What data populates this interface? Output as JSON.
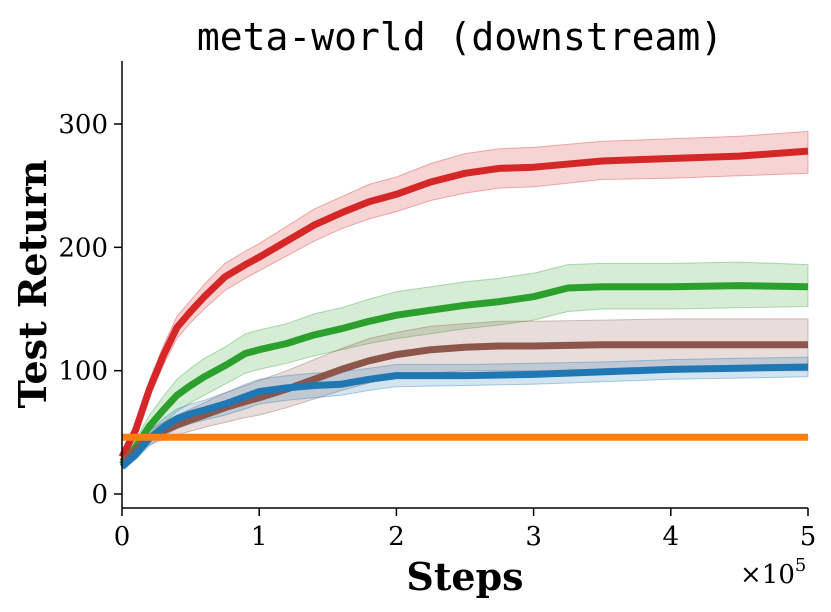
{
  "chart_data": {
    "type": "line",
    "title": "meta-world (downstream)",
    "xlabel": "Steps",
    "ylabel": "Test Return",
    "x_multiplier_label": "×10",
    "x_multiplier_exponent": "5",
    "xlim": [
      0,
      5
    ],
    "ylim": [
      -10,
      350
    ],
    "xticks": [
      0,
      1,
      2,
      3,
      4,
      5
    ],
    "xtick_labels": [
      "0",
      "1",
      "2",
      "3",
      "4",
      "5"
    ],
    "yticks": [
      0,
      100,
      200,
      300
    ],
    "ytick_labels": [
      "0",
      "100",
      "200",
      "300"
    ],
    "grid": false,
    "legend": "none",
    "series": [
      {
        "color": "#d62728",
        "x": [
          0,
          0.1,
          0.2,
          0.3,
          0.4,
          0.5,
          0.6,
          0.75,
          0.9,
          1.0,
          1.2,
          1.4,
          1.6,
          1.8,
          2.0,
          2.25,
          2.5,
          2.75,
          3.0,
          3.5,
          4.0,
          4.5,
          5.0
        ],
        "y": [
          30,
          52,
          85,
          112,
          135,
          148,
          160,
          176,
          186,
          192,
          205,
          218,
          228,
          237,
          243,
          253,
          260,
          264,
          265,
          270,
          272,
          274,
          278
        ],
        "lower": [
          28,
          48,
          78,
          104,
          126,
          139,
          150,
          165,
          175,
          181,
          193,
          205,
          215,
          223,
          229,
          238,
          244,
          248,
          249,
          255,
          256,
          258,
          260
        ],
        "upper": [
          33,
          56,
          92,
          120,
          144,
          157,
          170,
          187,
          197,
          203,
          217,
          231,
          241,
          251,
          257,
          268,
          276,
          280,
          281,
          286,
          288,
          290,
          294
        ]
      },
      {
        "color": "#2ca02c",
        "x": [
          0,
          0.1,
          0.2,
          0.3,
          0.4,
          0.5,
          0.6,
          0.75,
          0.9,
          1.0,
          1.2,
          1.4,
          1.6,
          1.8,
          2.0,
          2.25,
          2.5,
          2.75,
          3.0,
          3.25,
          3.5,
          4.0,
          4.5,
          5.0
        ],
        "y": [
          24,
          38,
          55,
          68,
          80,
          88,
          95,
          104,
          114,
          117,
          122,
          129,
          134,
          140,
          145,
          149,
          153,
          156,
          160,
          167,
          168,
          168,
          169,
          168
        ],
        "lower": [
          22,
          32,
          46,
          57,
          67,
          74,
          80,
          89,
          98,
          101,
          106,
          112,
          117,
          122,
          126,
          130,
          134,
          137,
          141,
          148,
          150,
          150,
          151,
          152
        ],
        "upper": [
          26,
          44,
          64,
          79,
          93,
          102,
          110,
          119,
          130,
          133,
          138,
          146,
          151,
          158,
          164,
          168,
          172,
          175,
          179,
          186,
          187,
          187,
          188,
          186
        ]
      },
      {
        "color": "#8c564b",
        "x": [
          0,
          0.1,
          0.2,
          0.3,
          0.4,
          0.5,
          0.6,
          0.75,
          0.9,
          1.0,
          1.2,
          1.4,
          1.6,
          1.8,
          2.0,
          2.25,
          2.5,
          2.75,
          3.0,
          3.5,
          4.0,
          4.5,
          5.0
        ],
        "y": [
          26,
          36,
          46,
          51,
          56,
          60,
          64,
          70,
          75,
          78,
          85,
          93,
          101,
          108,
          113,
          117,
          119,
          120,
          120,
          121,
          121,
          121,
          121
        ],
        "lower": [
          24,
          32,
          40,
          44,
          48,
          51,
          54,
          58,
          62,
          64,
          70,
          77,
          84,
          90,
          95,
          98,
          100,
          100,
          100,
          100,
          100,
          100,
          100
        ],
        "upper": [
          28,
          40,
          52,
          58,
          64,
          69,
          74,
          82,
          88,
          92,
          100,
          109,
          118,
          126,
          131,
          136,
          138,
          140,
          140,
          141,
          142,
          142,
          142
        ]
      },
      {
        "color": "#1f77b4",
        "x": [
          0,
          0.1,
          0.2,
          0.3,
          0.4,
          0.5,
          0.6,
          0.75,
          0.9,
          1.0,
          1.2,
          1.4,
          1.6,
          1.8,
          2.0,
          2.5,
          3.0,
          3.5,
          4.0,
          4.5,
          5.0
        ],
        "y": [
          22,
          32,
          45,
          54,
          61,
          65,
          68,
          73,
          79,
          83,
          86,
          88,
          89,
          93,
          96,
          96,
          97,
          99,
          101,
          102,
          103
        ],
        "lower": [
          20,
          28,
          39,
          47,
          53,
          57,
          60,
          64,
          69,
          73,
          76,
          78,
          80,
          84,
          87,
          88,
          89,
          91,
          93,
          94,
          95
        ],
        "upper": [
          24,
          36,
          51,
          61,
          69,
          73,
          76,
          82,
          89,
          93,
          96,
          98,
          99,
          102,
          105,
          105,
          106,
          107,
          109,
          110,
          111
        ]
      },
      {
        "color": "#ff7f0e",
        "x": [
          0,
          5
        ],
        "y": [
          46,
          46
        ],
        "lower": [
          45,
          45
        ],
        "upper": [
          47,
          47
        ]
      }
    ]
  }
}
